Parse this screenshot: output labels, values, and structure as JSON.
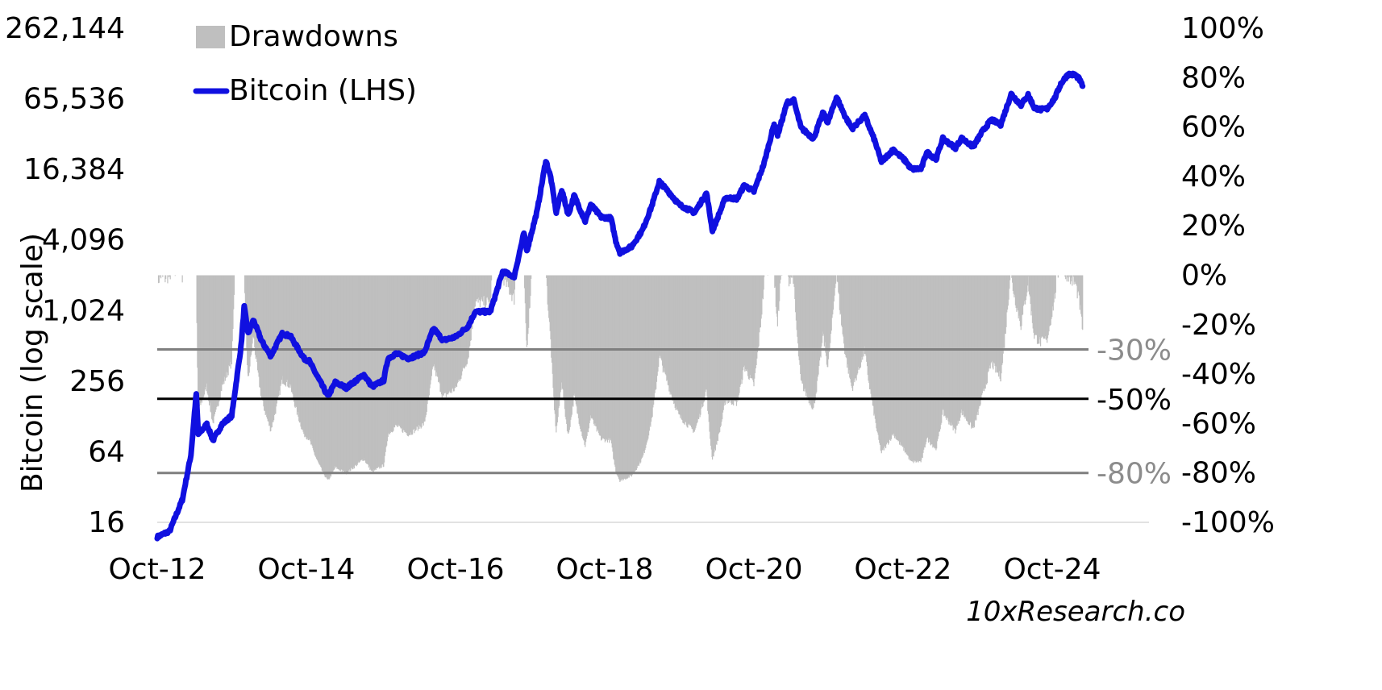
{
  "chart_data": {
    "type": "line",
    "y_left": {
      "title": "Bitcoin (log scale)",
      "scale": "log2",
      "ticks": [
        "16",
        "64",
        "256",
        "1,024",
        "4,096",
        "16,384",
        "65,536",
        "262,144"
      ],
      "tick_values": [
        16,
        64,
        256,
        1024,
        4096,
        16384,
        65536,
        262144
      ]
    },
    "y_right": {
      "ticks": [
        "100%",
        "80%",
        "60%",
        "40%",
        "20%",
        "0%",
        "-20%",
        "-40%",
        "-60%",
        "-80%",
        "-100%"
      ],
      "tick_values": [
        100,
        80,
        60,
        40,
        20,
        0,
        -20,
        -40,
        -60,
        -80,
        -100
      ]
    },
    "x_axis": {
      "ticks": [
        "Oct-12",
        "Oct-14",
        "Oct-16",
        "Oct-18",
        "Oct-20",
        "Oct-22",
        "Oct-24"
      ],
      "tick_dates": [
        "2012-10-01",
        "2014-10-01",
        "2016-10-01",
        "2018-10-01",
        "2020-10-01",
        "2022-10-01",
        "2024-10-01"
      ]
    },
    "legend": {
      "placement": "top-left",
      "items": [
        {
          "label": "Drawdowns",
          "kind": "area",
          "color": "#bfbfbf"
        },
        {
          "label": "Bitcoin (LHS)",
          "kind": "line",
          "color": "#1010e0"
        }
      ]
    },
    "reference_lines": [
      {
        "value": -30,
        "label": "-30%",
        "color": "#7f7f7f",
        "label_color": "#8c8c8c"
      },
      {
        "value": -50,
        "label": "-50%",
        "color": "#000000",
        "label_color": "#000000"
      },
      {
        "value": -80,
        "label": "-80%",
        "color": "#7f7f7f",
        "label_color": "#8c8c8c"
      }
    ],
    "series": [
      {
        "name": "Bitcoin (LHS)",
        "axis": "left",
        "color": "#1010e0",
        "points": [
          [
            "2012-10-01",
            12
          ],
          [
            "2012-12-01",
            13.5
          ],
          [
            "2013-02-01",
            25
          ],
          [
            "2013-03-15",
            60
          ],
          [
            "2013-04-10",
            200
          ],
          [
            "2013-04-20",
            90
          ],
          [
            "2013-06-01",
            110
          ],
          [
            "2013-07-01",
            80
          ],
          [
            "2013-08-15",
            110
          ],
          [
            "2013-10-01",
            130
          ],
          [
            "2013-11-15",
            500
          ],
          [
            "2013-12-01",
            1100
          ],
          [
            "2013-12-20",
            650
          ],
          [
            "2014-01-15",
            850
          ],
          [
            "2014-02-25",
            560
          ],
          [
            "2014-04-10",
            420
          ],
          [
            "2014-06-05",
            650
          ],
          [
            "2014-07-15",
            620
          ],
          [
            "2014-09-20",
            400
          ],
          [
            "2014-10-15",
            380
          ],
          [
            "2015-01-15",
            190
          ],
          [
            "2015-02-20",
            250
          ],
          [
            "2015-04-15",
            225
          ],
          [
            "2015-07-10",
            290
          ],
          [
            "2015-08-20",
            230
          ],
          [
            "2015-10-15",
            260
          ],
          [
            "2015-11-05",
            400
          ],
          [
            "2015-12-15",
            440
          ],
          [
            "2016-02-15",
            400
          ],
          [
            "2016-05-01",
            450
          ],
          [
            "2016-06-15",
            720
          ],
          [
            "2016-08-01",
            570
          ],
          [
            "2016-10-01",
            610
          ],
          [
            "2016-12-01",
            750
          ],
          [
            "2017-01-05",
            1000
          ],
          [
            "2017-03-20",
            1000
          ],
          [
            "2017-05-20",
            2200
          ],
          [
            "2017-07-15",
            2000
          ],
          [
            "2017-09-01",
            4700
          ],
          [
            "2017-09-15",
            3300
          ],
          [
            "2017-11-05",
            7300
          ],
          [
            "2017-12-17",
            19500
          ],
          [
            "2018-01-10",
            14000
          ],
          [
            "2018-02-06",
            7000
          ],
          [
            "2018-03-05",
            11000
          ],
          [
            "2018-04-06",
            6700
          ],
          [
            "2018-05-05",
            9800
          ],
          [
            "2018-06-28",
            5900
          ],
          [
            "2018-07-25",
            8200
          ],
          [
            "2018-09-15",
            6400
          ],
          [
            "2018-11-01",
            6300
          ],
          [
            "2018-11-25",
            4000
          ],
          [
            "2018-12-15",
            3200
          ],
          [
            "2019-02-10",
            3600
          ],
          [
            "2019-04-05",
            5000
          ],
          [
            "2019-05-20",
            8000
          ],
          [
            "2019-06-26",
            12900
          ],
          [
            "2019-08-15",
            10300
          ],
          [
            "2019-10-01",
            8200
          ],
          [
            "2019-12-15",
            7000
          ],
          [
            "2020-02-12",
            10300
          ],
          [
            "2020-03-12",
            4900
          ],
          [
            "2020-05-15",
            9400
          ],
          [
            "2020-07-10",
            9200
          ],
          [
            "2020-08-15",
            12000
          ],
          [
            "2020-10-01",
            10600
          ],
          [
            "2020-11-20",
            18500
          ],
          [
            "2021-01-08",
            40000
          ],
          [
            "2021-01-25",
            32000
          ],
          [
            "2021-03-13",
            61000
          ],
          [
            "2021-04-14",
            63500
          ],
          [
            "2021-05-20",
            37000
          ],
          [
            "2021-07-20",
            30000
          ],
          [
            "2021-09-05",
            50000
          ],
          [
            "2021-09-28",
            41000
          ],
          [
            "2021-11-10",
            68000
          ],
          [
            "2021-12-20",
            47000
          ],
          [
            "2022-01-25",
            36500
          ],
          [
            "2022-03-28",
            47000
          ],
          [
            "2022-05-15",
            29000
          ],
          [
            "2022-06-18",
            19000
          ],
          [
            "2022-08-15",
            24200
          ],
          [
            "2022-10-15",
            19200
          ],
          [
            "2022-11-10",
            16500
          ],
          [
            "2022-12-30",
            16600
          ],
          [
            "2023-01-25",
            23000
          ],
          [
            "2023-03-12",
            20000
          ],
          [
            "2023-04-14",
            30000
          ],
          [
            "2023-06-15",
            25000
          ],
          [
            "2023-07-15",
            30200
          ],
          [
            "2023-09-10",
            25500
          ],
          [
            "2023-10-25",
            34500
          ],
          [
            "2023-12-08",
            43500
          ],
          [
            "2024-01-23",
            39500
          ],
          [
            "2024-03-14",
            72000
          ],
          [
            "2024-05-01",
            58000
          ],
          [
            "2024-06-05",
            71000
          ],
          [
            "2024-07-05",
            55000
          ],
          [
            "2024-08-05",
            53000
          ],
          [
            "2024-09-06",
            54000
          ],
          [
            "2024-10-15",
            67000
          ],
          [
            "2024-11-12",
            88000
          ],
          [
            "2024-12-17",
            106000
          ],
          [
            "2025-01-20",
            105000
          ],
          [
            "2025-02-10",
            97000
          ],
          [
            "2025-02-27",
            84000
          ]
        ]
      },
      {
        "name": "Drawdowns",
        "axis": "right",
        "color": "#bfbfbf",
        "derived_from": "Bitcoin (LHS)",
        "definition": "percent decline from running maximum"
      }
    ]
  },
  "source_text": "10xResearch.co"
}
